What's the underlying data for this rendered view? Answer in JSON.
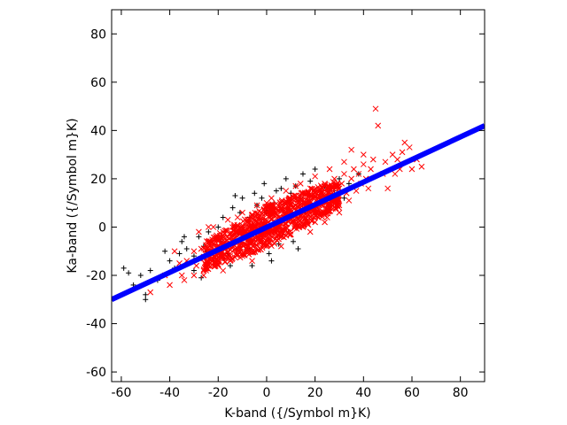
{
  "chart_data": {
    "type": "scatter",
    "xlabel": "K-band ({/Symbol m}K)",
    "ylabel": "Ka-band ({/Symbol m}K)",
    "xlim": [
      -64,
      90
    ],
    "ylim": [
      -64,
      90
    ],
    "xticks": [
      -60,
      -40,
      -20,
      0,
      20,
      40,
      60,
      80
    ],
    "yticks": [
      -60,
      -40,
      -20,
      0,
      20,
      40,
      60,
      80
    ],
    "grid": false,
    "legend": "none",
    "colors": {
      "black_series": "#000000",
      "red_series": "#ff0000",
      "fit_line": "#0000ff",
      "axes": "#000000"
    },
    "series": [
      {
        "marker": "plus",
        "color": "#000000",
        "points": [
          [
            -59,
            -17
          ],
          [
            -57,
            -19
          ],
          [
            -55,
            -24
          ],
          [
            -50,
            -28
          ],
          [
            -50,
            -30
          ],
          [
            -52,
            -20
          ],
          [
            -48,
            -18
          ],
          [
            -45,
            -22
          ],
          [
            -40,
            -14
          ],
          [
            -38,
            -17
          ],
          [
            -36,
            -11
          ],
          [
            -35,
            -6
          ],
          [
            -33,
            -9
          ],
          [
            -30,
            -18
          ],
          [
            -30,
            -12
          ],
          [
            -28,
            -4
          ],
          [
            -27,
            -21
          ],
          [
            -25,
            -10
          ],
          [
            -24,
            -2
          ],
          [
            -22,
            -14
          ],
          [
            -20,
            0
          ],
          [
            -19,
            -6
          ],
          [
            -18,
            4
          ],
          [
            -16,
            -11
          ],
          [
            -15,
            -16
          ],
          [
            -14,
            8
          ],
          [
            -12,
            -2
          ],
          [
            -11,
            6
          ],
          [
            -10,
            12
          ],
          [
            -8,
            -9
          ],
          [
            -7,
            4
          ],
          [
            -5,
            14
          ],
          [
            -4,
            9
          ],
          [
            -3,
            -4
          ],
          [
            -2,
            12
          ],
          [
            -1,
            18
          ],
          [
            0,
            6
          ],
          [
            2,
            -14
          ],
          [
            3,
            10
          ],
          [
            4,
            15
          ],
          [
            5,
            -7
          ],
          [
            6,
            16
          ],
          [
            7,
            3
          ],
          [
            8,
            20
          ],
          [
            9,
            -2
          ],
          [
            10,
            14
          ],
          [
            11,
            -6
          ],
          [
            12,
            17
          ],
          [
            14,
            12
          ],
          [
            15,
            22
          ],
          [
            16,
            6
          ],
          [
            18,
            19
          ],
          [
            20,
            24
          ],
          [
            22,
            10
          ],
          [
            24,
            17
          ],
          [
            26,
            7
          ],
          [
            28,
            15
          ],
          [
            30,
            20
          ],
          [
            32,
            12
          ],
          [
            34,
            18
          ],
          [
            38,
            22
          ],
          [
            -42,
            -10
          ],
          [
            -26,
            -8
          ],
          [
            -34,
            -4
          ],
          [
            -18,
            -13
          ],
          [
            -6,
            -16
          ],
          [
            1,
            -11
          ],
          [
            -13,
            13
          ],
          [
            13,
            -9
          ]
        ]
      },
      {
        "marker": "x",
        "color": "#ff0000",
        "points": [
          [
            -48,
            -27
          ],
          [
            -42,
            -20
          ],
          [
            -40,
            -24
          ],
          [
            -36,
            -15
          ],
          [
            -35,
            -20
          ],
          [
            -33,
            -14
          ],
          [
            -30,
            -10
          ],
          [
            -29,
            -16
          ],
          [
            -27,
            -9
          ],
          [
            -26,
            -13
          ],
          [
            -24,
            -6
          ],
          [
            -23,
            -11
          ],
          [
            -22,
            -16
          ],
          [
            -21,
            -4
          ],
          [
            -20,
            -8
          ],
          [
            -19,
            -12
          ],
          [
            -18,
            -2
          ],
          [
            -17,
            -7
          ],
          [
            -16,
            -10
          ],
          [
            -15,
            -3
          ],
          [
            -14,
            -8
          ],
          [
            -13,
            -1
          ],
          [
            -12,
            -5
          ],
          [
            -11,
            -9
          ],
          [
            -10,
            0
          ],
          [
            -9,
            -4
          ],
          [
            -8,
            2
          ],
          [
            -7,
            -2
          ],
          [
            -6,
            -6
          ],
          [
            -5,
            3
          ],
          [
            -4,
            -1
          ],
          [
            -3,
            4
          ],
          [
            -2,
            -3
          ],
          [
            -1,
            1
          ],
          [
            0,
            5
          ],
          [
            1,
            -2
          ],
          [
            2,
            3
          ],
          [
            3,
            7
          ],
          [
            4,
            0
          ],
          [
            5,
            4
          ],
          [
            6,
            9
          ],
          [
            7,
            2
          ],
          [
            8,
            6
          ],
          [
            9,
            11
          ],
          [
            10,
            3
          ],
          [
            11,
            8
          ],
          [
            12,
            13
          ],
          [
            13,
            5
          ],
          [
            14,
            9
          ],
          [
            15,
            14
          ],
          [
            16,
            7
          ],
          [
            17,
            11
          ],
          [
            18,
            16
          ],
          [
            19,
            9
          ],
          [
            20,
            13
          ],
          [
            21,
            6
          ],
          [
            22,
            15
          ],
          [
            23,
            10
          ],
          [
            24,
            18
          ],
          [
            25,
            12
          ],
          [
            26,
            8
          ],
          [
            27,
            16
          ],
          [
            28,
            20
          ],
          [
            29,
            13
          ],
          [
            30,
            9
          ],
          [
            31,
            18
          ],
          [
            32,
            22
          ],
          [
            33,
            14
          ],
          [
            34,
            11
          ],
          [
            35,
            20
          ],
          [
            36,
            24
          ],
          [
            37,
            15
          ],
          [
            38,
            22
          ],
          [
            39,
            18
          ],
          [
            40,
            26
          ],
          [
            41,
            20
          ],
          [
            42,
            16
          ],
          [
            43,
            24
          ],
          [
            44,
            28
          ],
          [
            45,
            49
          ],
          [
            46,
            42
          ],
          [
            48,
            22
          ],
          [
            49,
            27
          ],
          [
            50,
            16
          ],
          [
            52,
            30
          ],
          [
            53,
            22
          ],
          [
            54,
            28
          ],
          [
            55,
            24
          ],
          [
            56,
            31
          ],
          [
            57,
            35
          ],
          [
            59,
            33
          ],
          [
            60,
            24
          ],
          [
            64,
            25
          ],
          [
            62,
            28
          ],
          [
            -30,
            -20
          ],
          [
            -25,
            -18
          ],
          [
            -20,
            -16
          ],
          [
            -15,
            -14
          ],
          [
            -10,
            -12
          ],
          [
            -5,
            -10
          ],
          [
            0,
            -8
          ],
          [
            5,
            -5
          ],
          [
            10,
            -3
          ],
          [
            15,
            0
          ],
          [
            20,
            2
          ],
          [
            25,
            4
          ],
          [
            30,
            6
          ],
          [
            -28,
            -2
          ],
          [
            -22,
            0
          ],
          [
            -16,
            3
          ],
          [
            -10,
            6
          ],
          [
            -4,
            9
          ],
          [
            2,
            12
          ],
          [
            8,
            15
          ],
          [
            14,
            18
          ],
          [
            20,
            21
          ],
          [
            26,
            24
          ],
          [
            32,
            27
          ],
          [
            35,
            32
          ],
          [
            40,
            30
          ],
          [
            -38,
            -10
          ],
          [
            -34,
            -22
          ],
          [
            -26,
            -20
          ],
          [
            -24,
            0
          ],
          [
            -18,
            -18
          ],
          [
            -12,
            4
          ],
          [
            -6,
            -14
          ],
          [
            0,
            10
          ],
          [
            6,
            -8
          ],
          [
            12,
            17
          ],
          [
            18,
            -2
          ],
          [
            24,
            2
          ],
          [
            30,
            16
          ]
        ]
      }
    ],
    "fit_line": {
      "color": "#0000ff",
      "x": [
        -64,
        90
      ],
      "y": [
        -30,
        42
      ]
    }
  }
}
